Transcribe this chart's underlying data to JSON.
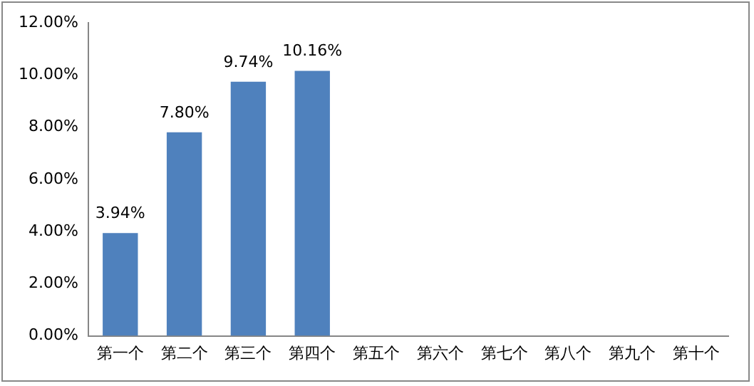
{
  "chart_data": {
    "type": "bar",
    "categories": [
      "第一个",
      "第二个",
      "第三个",
      "第四个",
      "第五个",
      "第六个",
      "第七个",
      "第八个",
      "第九个",
      "第十个"
    ],
    "values": [
      3.94,
      7.8,
      9.74,
      10.16,
      null,
      null,
      null,
      null,
      null,
      null
    ],
    "value_labels": [
      "3.94%",
      "7.80%",
      "9.74%",
      "10.16%",
      null,
      null,
      null,
      null,
      null,
      null
    ],
    "color": "#4f81bd",
    "ylim": [
      0,
      12
    ],
    "yticks": [
      {
        "value": 0,
        "label": "0.00%"
      },
      {
        "value": 2,
        "label": "2.00%"
      },
      {
        "value": 4,
        "label": "4.00%"
      },
      {
        "value": 6,
        "label": "6.00%"
      },
      {
        "value": 8,
        "label": "8.00%"
      },
      {
        "value": 10,
        "label": "10.00%"
      },
      {
        "value": 12,
        "label": "12.00%"
      }
    ],
    "grid": false,
    "legend": false
  }
}
